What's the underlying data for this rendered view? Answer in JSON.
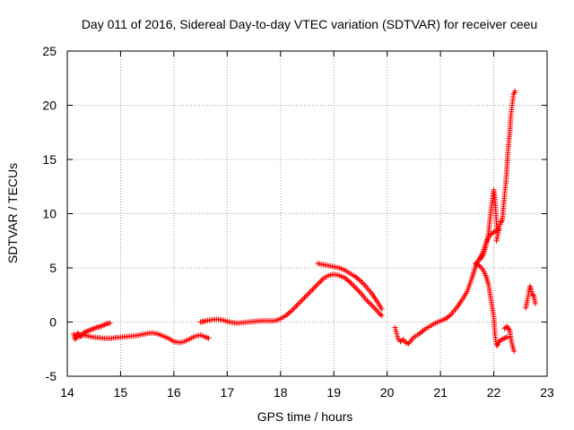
{
  "chart_data": {
    "type": "scatter",
    "title": "Day 011 of 2016, Sidereal Day-to-day VTEC variation (SDTVAR) for receiver ceeu",
    "xlabel": "GPS time / hours",
    "ylabel": "SDTVAR / TECUs",
    "xlim": [
      14,
      23
    ],
    "ylim": [
      -5,
      25
    ],
    "xticks": [
      "14",
      "15",
      "16",
      "17",
      "18",
      "19",
      "20",
      "21",
      "22",
      "23"
    ],
    "yticks": [
      "-5",
      "0",
      "5",
      "10",
      "15",
      "20",
      "25"
    ],
    "grid": true,
    "marker": "+",
    "color": "#ff0000",
    "series": [
      {
        "name": "SDTVAR",
        "segments": [
          [
            [
              14.12,
              -1.1
            ],
            [
              14.15,
              -1.6
            ],
            [
              14.18,
              -1.2
            ],
            [
              14.2,
              -1.0
            ],
            [
              14.25,
              -1.3
            ],
            [
              14.3,
              -1.0
            ],
            [
              14.35,
              -0.9
            ],
            [
              14.4,
              -0.8
            ],
            [
              14.45,
              -0.7
            ],
            [
              14.5,
              -0.6
            ],
            [
              14.55,
              -0.5
            ],
            [
              14.6,
              -0.45
            ],
            [
              14.65,
              -0.35
            ],
            [
              14.7,
              -0.25
            ],
            [
              14.75,
              -0.15
            ],
            [
              14.8,
              -0.1
            ]
          ],
          [
            [
              14.2,
              -1.4
            ],
            [
              14.3,
              -1.2
            ],
            [
              14.4,
              -1.3
            ],
            [
              14.5,
              -1.4
            ],
            [
              14.6,
              -1.45
            ],
            [
              14.7,
              -1.5
            ],
            [
              14.8,
              -1.5
            ],
            [
              14.9,
              -1.45
            ],
            [
              15.0,
              -1.4
            ],
            [
              15.1,
              -1.35
            ],
            [
              15.2,
              -1.3
            ],
            [
              15.3,
              -1.25
            ],
            [
              15.4,
              -1.15
            ],
            [
              15.5,
              -1.05
            ],
            [
              15.6,
              -1.0
            ],
            [
              15.7,
              -1.1
            ],
            [
              15.8,
              -1.3
            ],
            [
              15.9,
              -1.5
            ],
            [
              16.0,
              -1.8
            ],
            [
              16.1,
              -1.9
            ],
            [
              16.2,
              -1.8
            ],
            [
              16.3,
              -1.55
            ],
            [
              16.4,
              -1.3
            ],
            [
              16.5,
              -1.2
            ],
            [
              16.6,
              -1.4
            ],
            [
              16.65,
              -1.5
            ]
          ],
          [
            [
              16.5,
              0.0
            ],
            [
              16.55,
              0.05
            ],
            [
              16.6,
              0.1
            ],
            [
              16.7,
              0.2
            ],
            [
              16.8,
              0.25
            ],
            [
              16.9,
              0.2
            ],
            [
              17.0,
              0.05
            ],
            [
              17.1,
              -0.05
            ],
            [
              17.2,
              -0.1
            ],
            [
              17.3,
              -0.05
            ],
            [
              17.4,
              0.0
            ],
            [
              17.5,
              0.05
            ],
            [
              17.6,
              0.1
            ],
            [
              17.7,
              0.12
            ],
            [
              17.8,
              0.1
            ],
            [
              17.9,
              0.12
            ],
            [
              18.0,
              0.3
            ],
            [
              18.1,
              0.6
            ],
            [
              18.2,
              1.0
            ],
            [
              18.3,
              1.5
            ],
            [
              18.4,
              2.0
            ],
            [
              18.5,
              2.5
            ],
            [
              18.6,
              3.0
            ],
            [
              18.7,
              3.5
            ],
            [
              18.8,
              4.0
            ],
            [
              18.9,
              4.3
            ],
            [
              19.0,
              4.4
            ],
            [
              19.1,
              4.3
            ],
            [
              19.2,
              4.1
            ],
            [
              19.3,
              3.7
            ],
            [
              19.4,
              3.2
            ],
            [
              19.5,
              2.7
            ],
            [
              19.6,
              2.1
            ],
            [
              19.7,
              1.6
            ],
            [
              19.8,
              1.1
            ],
            [
              19.85,
              0.8
            ],
            [
              19.9,
              0.6
            ]
          ],
          [
            [
              18.7,
              5.4
            ],
            [
              18.8,
              5.3
            ],
            [
              18.9,
              5.2
            ],
            [
              19.0,
              5.1
            ],
            [
              19.1,
              5.0
            ],
            [
              19.2,
              4.8
            ],
            [
              19.3,
              4.5
            ],
            [
              19.4,
              4.2
            ],
            [
              19.5,
              3.8
            ],
            [
              19.6,
              3.3
            ],
            [
              19.7,
              2.7
            ],
            [
              19.8,
              2.0
            ],
            [
              19.9,
              1.2
            ]
          ],
          [
            [
              20.15,
              -0.5
            ],
            [
              20.2,
              -1.5
            ],
            [
              20.25,
              -1.8
            ],
            [
              20.3,
              -1.6
            ],
            [
              20.35,
              -1.9
            ],
            [
              20.4,
              -2.0
            ],
            [
              20.45,
              -1.7
            ],
            [
              20.5,
              -1.4
            ],
            [
              20.6,
              -1.1
            ],
            [
              20.7,
              -0.7
            ],
            [
              20.8,
              -0.4
            ],
            [
              20.9,
              -0.1
            ],
            [
              21.0,
              0.1
            ],
            [
              21.1,
              0.3
            ],
            [
              21.2,
              0.7
            ],
            [
              21.3,
              1.3
            ],
            [
              21.4,
              2.0
            ],
            [
              21.5,
              2.8
            ],
            [
              21.55,
              3.5
            ],
            [
              21.6,
              4.2
            ],
            [
              21.65,
              5.0
            ],
            [
              21.7,
              5.6
            ],
            [
              21.75,
              6.0
            ],
            [
              21.8,
              6.5
            ],
            [
              21.85,
              7.2
            ],
            [
              21.9,
              7.8
            ],
            [
              21.95,
              8.1
            ],
            [
              22.0,
              8.3
            ],
            [
              22.05,
              8.4
            ],
            [
              22.08,
              8.5
            ]
          ],
          [
            [
              21.65,
              5.4
            ],
            [
              21.7,
              5.3
            ],
            [
              21.75,
              5.1
            ],
            [
              21.8,
              4.8
            ],
            [
              21.85,
              4.3
            ],
            [
              21.9,
              3.5
            ],
            [
              21.95,
              2.0
            ],
            [
              22.0,
              0.5
            ],
            [
              22.02,
              -1.0
            ],
            [
              22.04,
              -1.8
            ],
            [
              22.06,
              -2.2
            ],
            [
              22.1,
              -1.8
            ],
            [
              22.15,
              -1.6
            ],
            [
              22.2,
              -1.5
            ],
            [
              22.25,
              -1.4
            ]
          ],
          [
            [
              21.75,
              5.8
            ],
            [
              21.8,
              6.2
            ],
            [
              21.85,
              7.0
            ],
            [
              21.9,
              8.2
            ],
            [
              21.93,
              9.5
            ],
            [
              21.96,
              10.8
            ],
            [
              21.98,
              11.6
            ],
            [
              22.0,
              12.2
            ],
            [
              22.02,
              11.5
            ],
            [
              22.04,
              10.0
            ],
            [
              22.06,
              8.5
            ]
          ],
          [
            [
              22.05,
              7.5
            ],
            [
              22.1,
              8.6
            ],
            [
              22.13,
              9.2
            ],
            [
              22.16,
              9.4
            ],
            [
              22.18,
              10.5
            ],
            [
              22.2,
              11.6
            ],
            [
              22.23,
              13.0
            ],
            [
              22.25,
              14.5
            ],
            [
              22.27,
              16.0
            ],
            [
              22.3,
              17.5
            ],
            [
              22.32,
              19.0
            ],
            [
              22.35,
              20.2
            ],
            [
              22.37,
              21.0
            ],
            [
              22.4,
              21.3
            ]
          ],
          [
            [
              22.2,
              -0.6
            ],
            [
              22.25,
              -0.4
            ],
            [
              22.3,
              -0.8
            ],
            [
              22.32,
              -1.5
            ],
            [
              22.35,
              -2.2
            ],
            [
              22.38,
              -2.7
            ]
          ],
          [
            [
              22.6,
              1.3
            ],
            [
              22.63,
              2.0
            ],
            [
              22.66,
              2.8
            ],
            [
              22.68,
              3.3
            ],
            [
              22.7,
              3.0
            ],
            [
              22.72,
              2.6
            ],
            [
              22.75,
              2.4
            ],
            [
              22.78,
              1.7
            ]
          ]
        ]
      }
    ]
  }
}
